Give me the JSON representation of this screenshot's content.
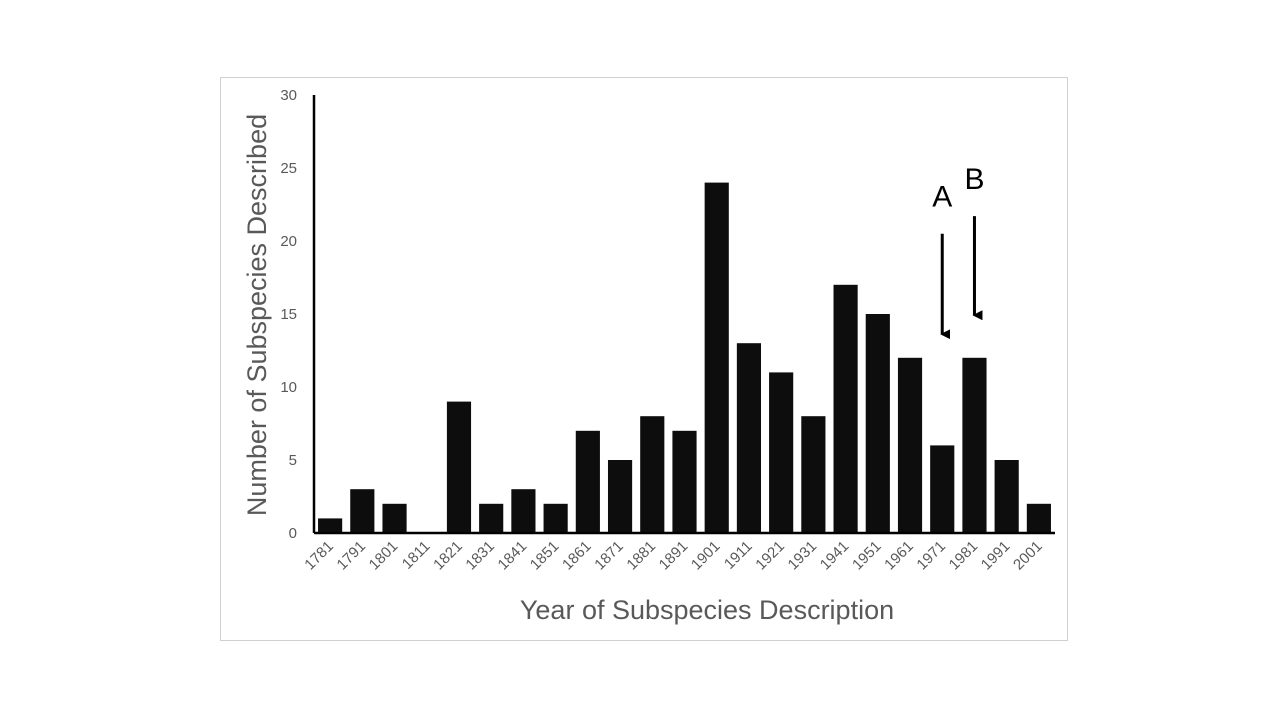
{
  "chart_data": {
    "type": "bar",
    "title": "",
    "xlabel": "Year of Subspecies Description",
    "ylabel": "Number of Subspecies Described",
    "categories": [
      "1781",
      "1791",
      "1801",
      "1811",
      "1821",
      "1831",
      "1841",
      "1851",
      "1861",
      "1871",
      "1881",
      "1891",
      "1901",
      "1911",
      "1921",
      "1931",
      "1941",
      "1951",
      "1961",
      "1971",
      "1981",
      "1991",
      "2001"
    ],
    "values": [
      1,
      3,
      2,
      0,
      9,
      2,
      3,
      2,
      7,
      5,
      8,
      7,
      24,
      13,
      11,
      8,
      17,
      15,
      12,
      6,
      12,
      5,
      2
    ],
    "ylim": [
      0,
      30
    ],
    "yticks": [
      0,
      5,
      10,
      15,
      20,
      25,
      30
    ],
    "grid": false,
    "legend": "none",
    "bar_color": "#0d0d0d",
    "annotations": [
      {
        "label": "A",
        "category": "1971",
        "arrow_from_y": 20.5,
        "arrow_to_y": 13.0
      },
      {
        "label": "B",
        "category": "1981",
        "arrow_from_y": 21.7,
        "arrow_to_y": 14.3
      }
    ]
  }
}
